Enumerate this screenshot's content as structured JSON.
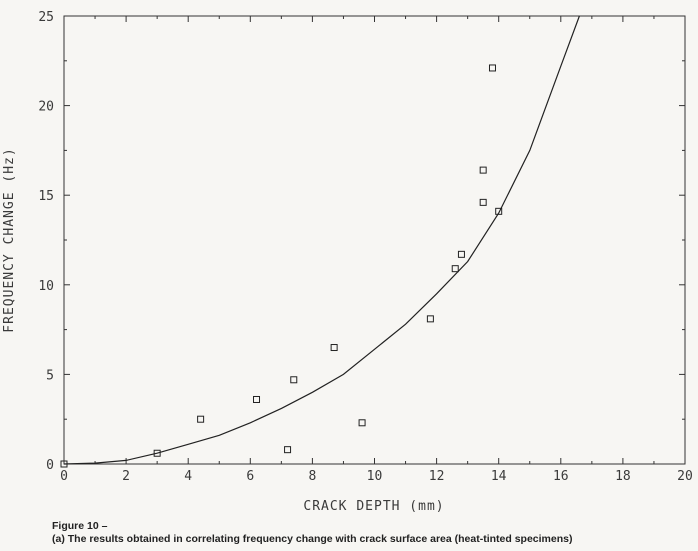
{
  "chart_data": {
    "type": "scatter",
    "xlabel": "CRACK DEPTH (mm)",
    "ylabel": "FREQUENCY CHANGE (Hz)",
    "xlim": [
      0,
      20
    ],
    "ylim": [
      0,
      25
    ],
    "xticks": [
      0,
      2,
      4,
      6,
      8,
      10,
      12,
      14,
      16,
      18,
      20
    ],
    "yticks": [
      0,
      5,
      10,
      15,
      20,
      25
    ],
    "grid": false,
    "legend": "none",
    "marker": "open-square",
    "points": [
      {
        "x": 0.0,
        "y": 0.0
      },
      {
        "x": 3.0,
        "y": 0.6
      },
      {
        "x": 4.4,
        "y": 2.5
      },
      {
        "x": 6.2,
        "y": 3.6
      },
      {
        "x": 7.2,
        "y": 0.8
      },
      {
        "x": 7.4,
        "y": 4.7
      },
      {
        "x": 8.7,
        "y": 6.5
      },
      {
        "x": 9.6,
        "y": 2.3
      },
      {
        "x": 11.8,
        "y": 8.1
      },
      {
        "x": 12.6,
        "y": 10.9
      },
      {
        "x": 12.8,
        "y": 11.7
      },
      {
        "x": 13.5,
        "y": 16.4
      },
      {
        "x": 13.5,
        "y": 14.6
      },
      {
        "x": 14.0,
        "y": 14.1
      },
      {
        "x": 13.8,
        "y": 22.1
      }
    ],
    "fit_curve": [
      {
        "x": 0,
        "y": 0
      },
      {
        "x": 1,
        "y": 0.05
      },
      {
        "x": 2,
        "y": 0.2
      },
      {
        "x": 3,
        "y": 0.6
      },
      {
        "x": 4,
        "y": 1.1
      },
      {
        "x": 5,
        "y": 1.6
      },
      {
        "x": 6,
        "y": 2.3
      },
      {
        "x": 7,
        "y": 3.1
      },
      {
        "x": 8,
        "y": 4.0
      },
      {
        "x": 9,
        "y": 5.0
      },
      {
        "x": 10,
        "y": 6.4
      },
      {
        "x": 11,
        "y": 7.8
      },
      {
        "x": 12,
        "y": 9.5
      },
      {
        "x": 13,
        "y": 11.3
      },
      {
        "x": 14,
        "y": 14.0
      },
      {
        "x": 15,
        "y": 17.5
      },
      {
        "x": 16,
        "y": 22.2
      },
      {
        "x": 16.6,
        "y": 25.0
      }
    ]
  },
  "caption": {
    "line1": "Figure 10 –",
    "line2": "(a) The results obtained in correlating frequency change with crack surface area (heat-tinted specimens)"
  }
}
